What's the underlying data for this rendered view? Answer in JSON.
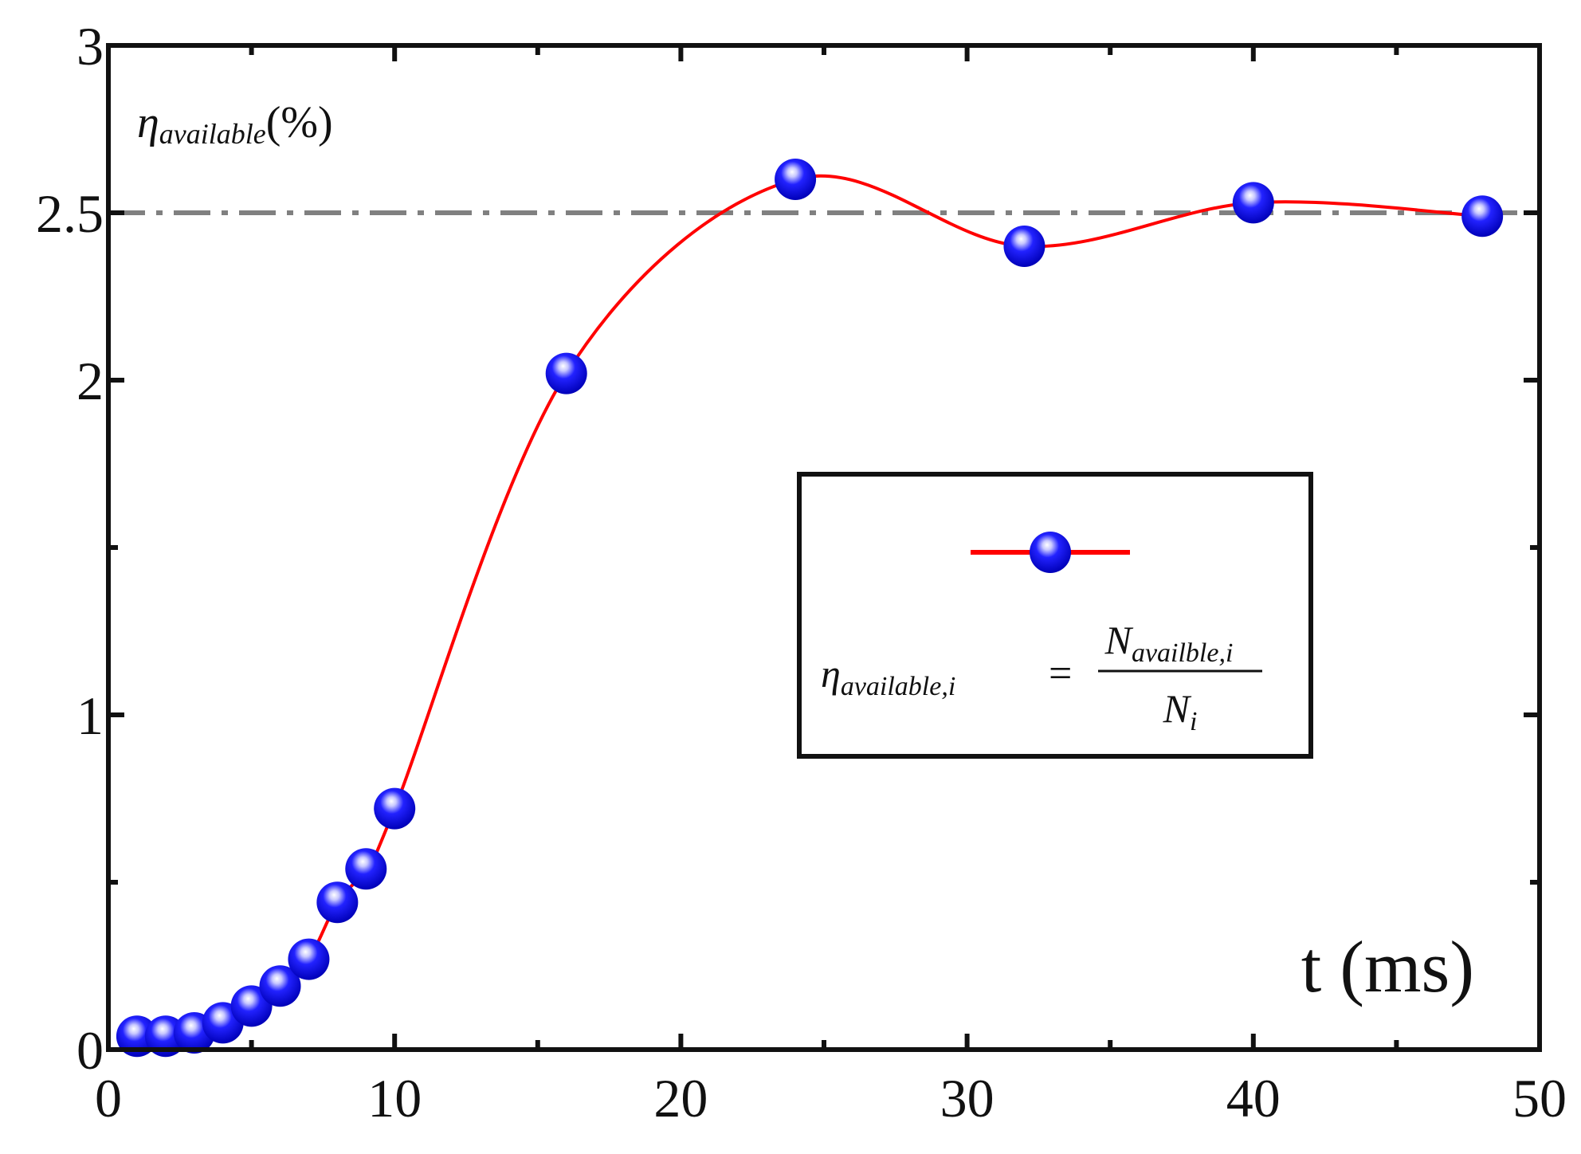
{
  "chart_data": {
    "type": "line",
    "title": "",
    "xlabel": "t (ms)",
    "ylabel_symbol": "η",
    "ylabel_subscript": "available",
    "ylabel_unit": "(%)",
    "xlim": [
      0,
      50
    ],
    "ylim": [
      0,
      3
    ],
    "x_ticks": [
      0,
      10,
      20,
      30,
      40,
      50
    ],
    "x_tick_labels": [
      "0",
      "10",
      "20",
      "30",
      "40",
      "50"
    ],
    "y_ticks": [
      0,
      1,
      2,
      2.5,
      3
    ],
    "y_tick_labels": [
      "0",
      "1",
      "2",
      "2.5",
      "3"
    ],
    "grid": false,
    "reference_line": {
      "y": 2.5,
      "style": "dash-dot",
      "color": "#808080"
    },
    "series": [
      {
        "name": "η_available,i",
        "line_color": "#ff0000",
        "marker_color": "#1010ee",
        "x": [
          1,
          2,
          3,
          4,
          5,
          6,
          7,
          8,
          9,
          10,
          16,
          24,
          32,
          40,
          48
        ],
        "y": [
          0.04,
          0.04,
          0.05,
          0.08,
          0.13,
          0.19,
          0.27,
          0.44,
          0.54,
          0.72,
          2.02,
          2.6,
          2.4,
          2.53,
          2.49
        ]
      }
    ],
    "legend": {
      "position": "center-right",
      "formula": {
        "lhs_symbol": "η",
        "lhs_subscript": "available,i",
        "equals": "=",
        "numerator_symbol": "N",
        "numerator_subscript": "availble,i",
        "denominator_symbol": "N",
        "denominator_subscript": "i"
      }
    }
  }
}
